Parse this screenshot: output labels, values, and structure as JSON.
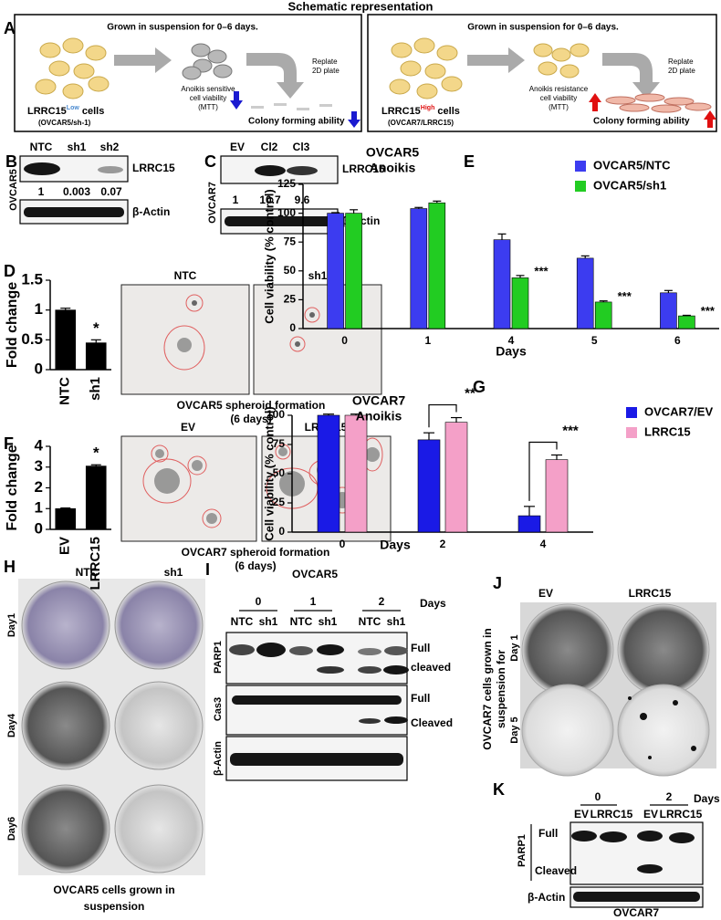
{
  "title": "Schematic representation",
  "panel_letters": [
    "A",
    "B",
    "C",
    "D",
    "E",
    "F",
    "G",
    "H",
    "I",
    "J",
    "K"
  ],
  "panel_a": {
    "left": {
      "header": "Grown in suspension for 0–6 days.",
      "viability": [
        "Anoikis sensitive",
        "cell viability",
        "(MTT)"
      ],
      "replate": [
        "Replate",
        "2D plate"
      ],
      "cells": {
        "name": "LRRC15",
        "sup": "Low",
        "suffix": " cells"
      },
      "line": "(OVCAR5/sh-1)",
      "colony": "Colony forming ability"
    },
    "right": {
      "header": "Grown in suspension for 0–6 days.",
      "viability": [
        "Anoikis resistance",
        "cell viability",
        "(MTT)"
      ],
      "replate": [
        "Replate",
        "2D plate"
      ],
      "cells": {
        "name": "LRRC15",
        "sup": "High",
        "suffix": " cells"
      },
      "line": "(OVCAR7/LRRC15)",
      "colony": "Colony forming ability"
    }
  },
  "panel_b": {
    "lanes": [
      "NTC",
      "sh1",
      "sh2"
    ],
    "cell_line": "OVCAR5",
    "protein": "LRRC15",
    "quant": [
      1,
      0.003,
      0.07
    ],
    "loading": "β-Actin"
  },
  "panel_c": {
    "lanes": [
      "EV",
      "Cl2",
      "Cl3"
    ],
    "cell_line": "OVCAR7",
    "protein": "LRRC15",
    "quant": [
      1,
      10.7,
      9.6
    ],
    "loading": "β-Actin"
  },
  "panel_d": {
    "images": [
      "NTC",
      "sh1"
    ],
    "caption": [
      "OVCAR5 spheroid formation",
      "(6 days)"
    ]
  },
  "panel_f": {
    "images": [
      "EV",
      "LRRC15"
    ],
    "caption": [
      "OVCAR7 spheroid formation",
      "(6 days)"
    ]
  },
  "panel_h": {
    "columns": [
      "NTC",
      "sh1"
    ],
    "rows": [
      "Day1",
      "Day4",
      "Day6"
    ],
    "caption": [
      "OVCAR5 cells grown in",
      "suspension"
    ]
  },
  "panel_i": {
    "title": "OVCAR5",
    "days": [
      0,
      1,
      2
    ],
    "days_label": "Days",
    "lanes": [
      "NTC",
      "sh1",
      "NTC",
      "sh1",
      "NTC",
      "sh1"
    ],
    "blots": [
      {
        "protein": "PARP1",
        "bands": [
          "Full",
          "cleaved"
        ]
      },
      {
        "protein": "Cas3",
        "bands": [
          "Full",
          "Cleaved"
        ]
      },
      {
        "protein": "β-Actin"
      }
    ]
  },
  "panel_j": {
    "columns": [
      "EV",
      "LRRC15"
    ],
    "rows": [
      "Day 1",
      "Day 5"
    ],
    "side_label": [
      "OVCAR7 cells grown in",
      "suspension for"
    ]
  },
  "panel_k": {
    "days": [
      0,
      2
    ],
    "days_label": "Days",
    "lanes": [
      "EV",
      "LRRC15",
      "EV",
      "LRRC15"
    ],
    "protein": "PARP1",
    "bands": [
      "Full",
      "Cleaved"
    ],
    "loading": "β-Actin",
    "cell_line": "OVCAR7"
  },
  "chart_data": [
    {
      "type": "bar",
      "ylabel": "Fold change",
      "categories": [
        "NTC",
        "sh1"
      ],
      "values": [
        1,
        0.45
      ],
      "errors": [
        0.03,
        0.05
      ],
      "color": "#000000",
      "ylim": [
        0,
        1.5
      ],
      "yticks": [
        0,
        0.5,
        1,
        1.5
      ],
      "annotations": [
        null,
        "*"
      ]
    },
    {
      "type": "bar",
      "title": "OVCAR5",
      "subtitle": "Anoikis",
      "xlabel": "Days",
      "ylabel": "Cell viability (% control)",
      "categories": [
        "0",
        "1",
        "4",
        "5",
        "6"
      ],
      "series": [
        {
          "name": "OVCAR5/NTC",
          "color": "#3c3cf0",
          "values": [
            100,
            104,
            77,
            61,
            31
          ],
          "errors": [
            0.5,
            1,
            5,
            2,
            2
          ]
        },
        {
          "name": "OVCAR5/sh1",
          "color": "#22cc22",
          "values": [
            100,
            109,
            44,
            23,
            11
          ],
          "errors": [
            3,
            1.5,
            2,
            1,
            0.5
          ]
        }
      ],
      "ylim": [
        0,
        125
      ],
      "yticks": [
        0,
        25,
        50,
        75,
        100,
        125
      ],
      "annotations": [
        null,
        null,
        "***",
        "***",
        "***"
      ]
    },
    {
      "type": "bar",
      "ylabel": "Fold change",
      "categories": [
        "EV",
        "LRRC15"
      ],
      "values": [
        1,
        3.05
      ],
      "errors": [
        0.03,
        0.06
      ],
      "color": "#000000",
      "ylim": [
        0,
        4
      ],
      "yticks": [
        0,
        1,
        2,
        3,
        4
      ],
      "annotations": [
        null,
        "*"
      ]
    },
    {
      "type": "bar",
      "title": "OVCAR7",
      "subtitle": "Anoikis",
      "xlabel": "Days",
      "ylabel": "Cell viability (% control)",
      "categories": [
        "0",
        "2",
        "4"
      ],
      "series": [
        {
          "name": "OVCAR7/EV",
          "color": "#1a1ae6",
          "values": [
            100,
            79,
            14
          ],
          "errors": [
            1,
            6,
            8
          ]
        },
        {
          "name": "LRRC15",
          "color": "#f4a0c8",
          "values": [
            100,
            94,
            62
          ],
          "errors": [
            1,
            4,
            4
          ]
        }
      ],
      "ylim": [
        0,
        100
      ],
      "yticks": [
        0,
        25,
        50,
        75,
        100
      ],
      "annotations": [
        null,
        "**",
        "***"
      ]
    }
  ]
}
